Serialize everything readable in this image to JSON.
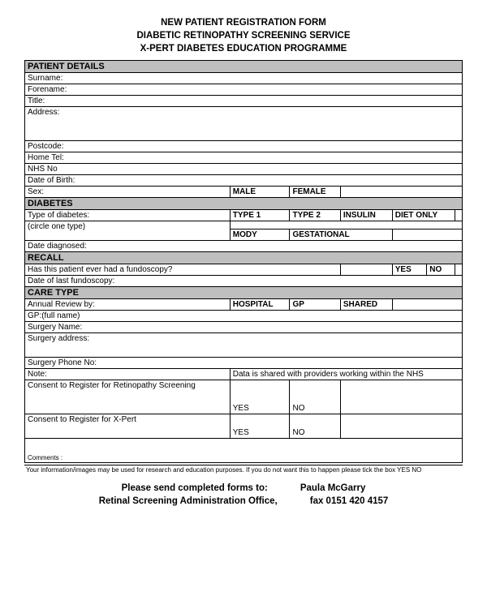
{
  "header": {
    "line1": "NEW PATIENT REGISTRATION FORM",
    "line2": "DIABETIC RETINOPATHY SCREENING SERVICE",
    "line3": "X-PERT DIABETES EDUCATION PROGRAMME"
  },
  "sections": {
    "patient_details": "PATIENT DETAILS",
    "diabetes": "DIABETES",
    "recall": "RECALL",
    "care_type": "CARE TYPE"
  },
  "labels": {
    "surname": "Surname:",
    "forename": "Forename:",
    "title": "Title:",
    "address": "Address:",
    "postcode": "Postcode:",
    "home_tel": "Home Tel:",
    "nhs_no": "NHS No",
    "dob": "Date of Birth:",
    "sex": "Sex:",
    "type_of_diabetes": "Type of diabetes:",
    "circle_one": "(circle one type)",
    "date_diagnosed": "Date diagnosed:",
    "fundoscopy_q": "Has this patient ever had a fundoscopy?",
    "date_last_fundo": "Date of last fundoscopy:",
    "annual_review": "Annual Review by:",
    "gp_fullname": "GP:(full name)",
    "surgery_name": "Surgery Name:",
    "surgery_address": "Surgery address:",
    "surgery_phone": "Surgery Phone No:",
    "note": "Note:",
    "note_text": "Data is shared with providers working within the NHS",
    "consent_ret": "Consent to Register for      Retinopathy Screening",
    "consent_xpert": "Consent to Register for            X-Pert",
    "comments": "Comments :"
  },
  "options": {
    "male": "MALE",
    "female": "FEMALE",
    "type1": "TYPE 1",
    "type2": "TYPE 2",
    "insulin": "INSULIN",
    "diet_only": "DIET ONLY",
    "mody": "MODY",
    "gestational": "GESTATIONAL",
    "yes": "YES",
    "no": "NO",
    "hospital": "HOSPITAL",
    "gp": "GP",
    "shared": "SHARED"
  },
  "footer": {
    "info": "Your information/images may be used for research and education purposes. If you do not want this to happen please tick the box           YES               NO",
    "send_line": "Please send completed forms to:",
    "office": "Retinal Screening Administration Office,",
    "contact_name": "Paula McGarry",
    "fax": "fax 0151 420 4157"
  },
  "style": {
    "section_bg": "#bfbfbf",
    "border_color": "#000000",
    "font_family": "Arial",
    "header_fontsize_pt": 11.5,
    "body_fontsize_pt": 10,
    "footer_fontsize_pt": 8
  }
}
